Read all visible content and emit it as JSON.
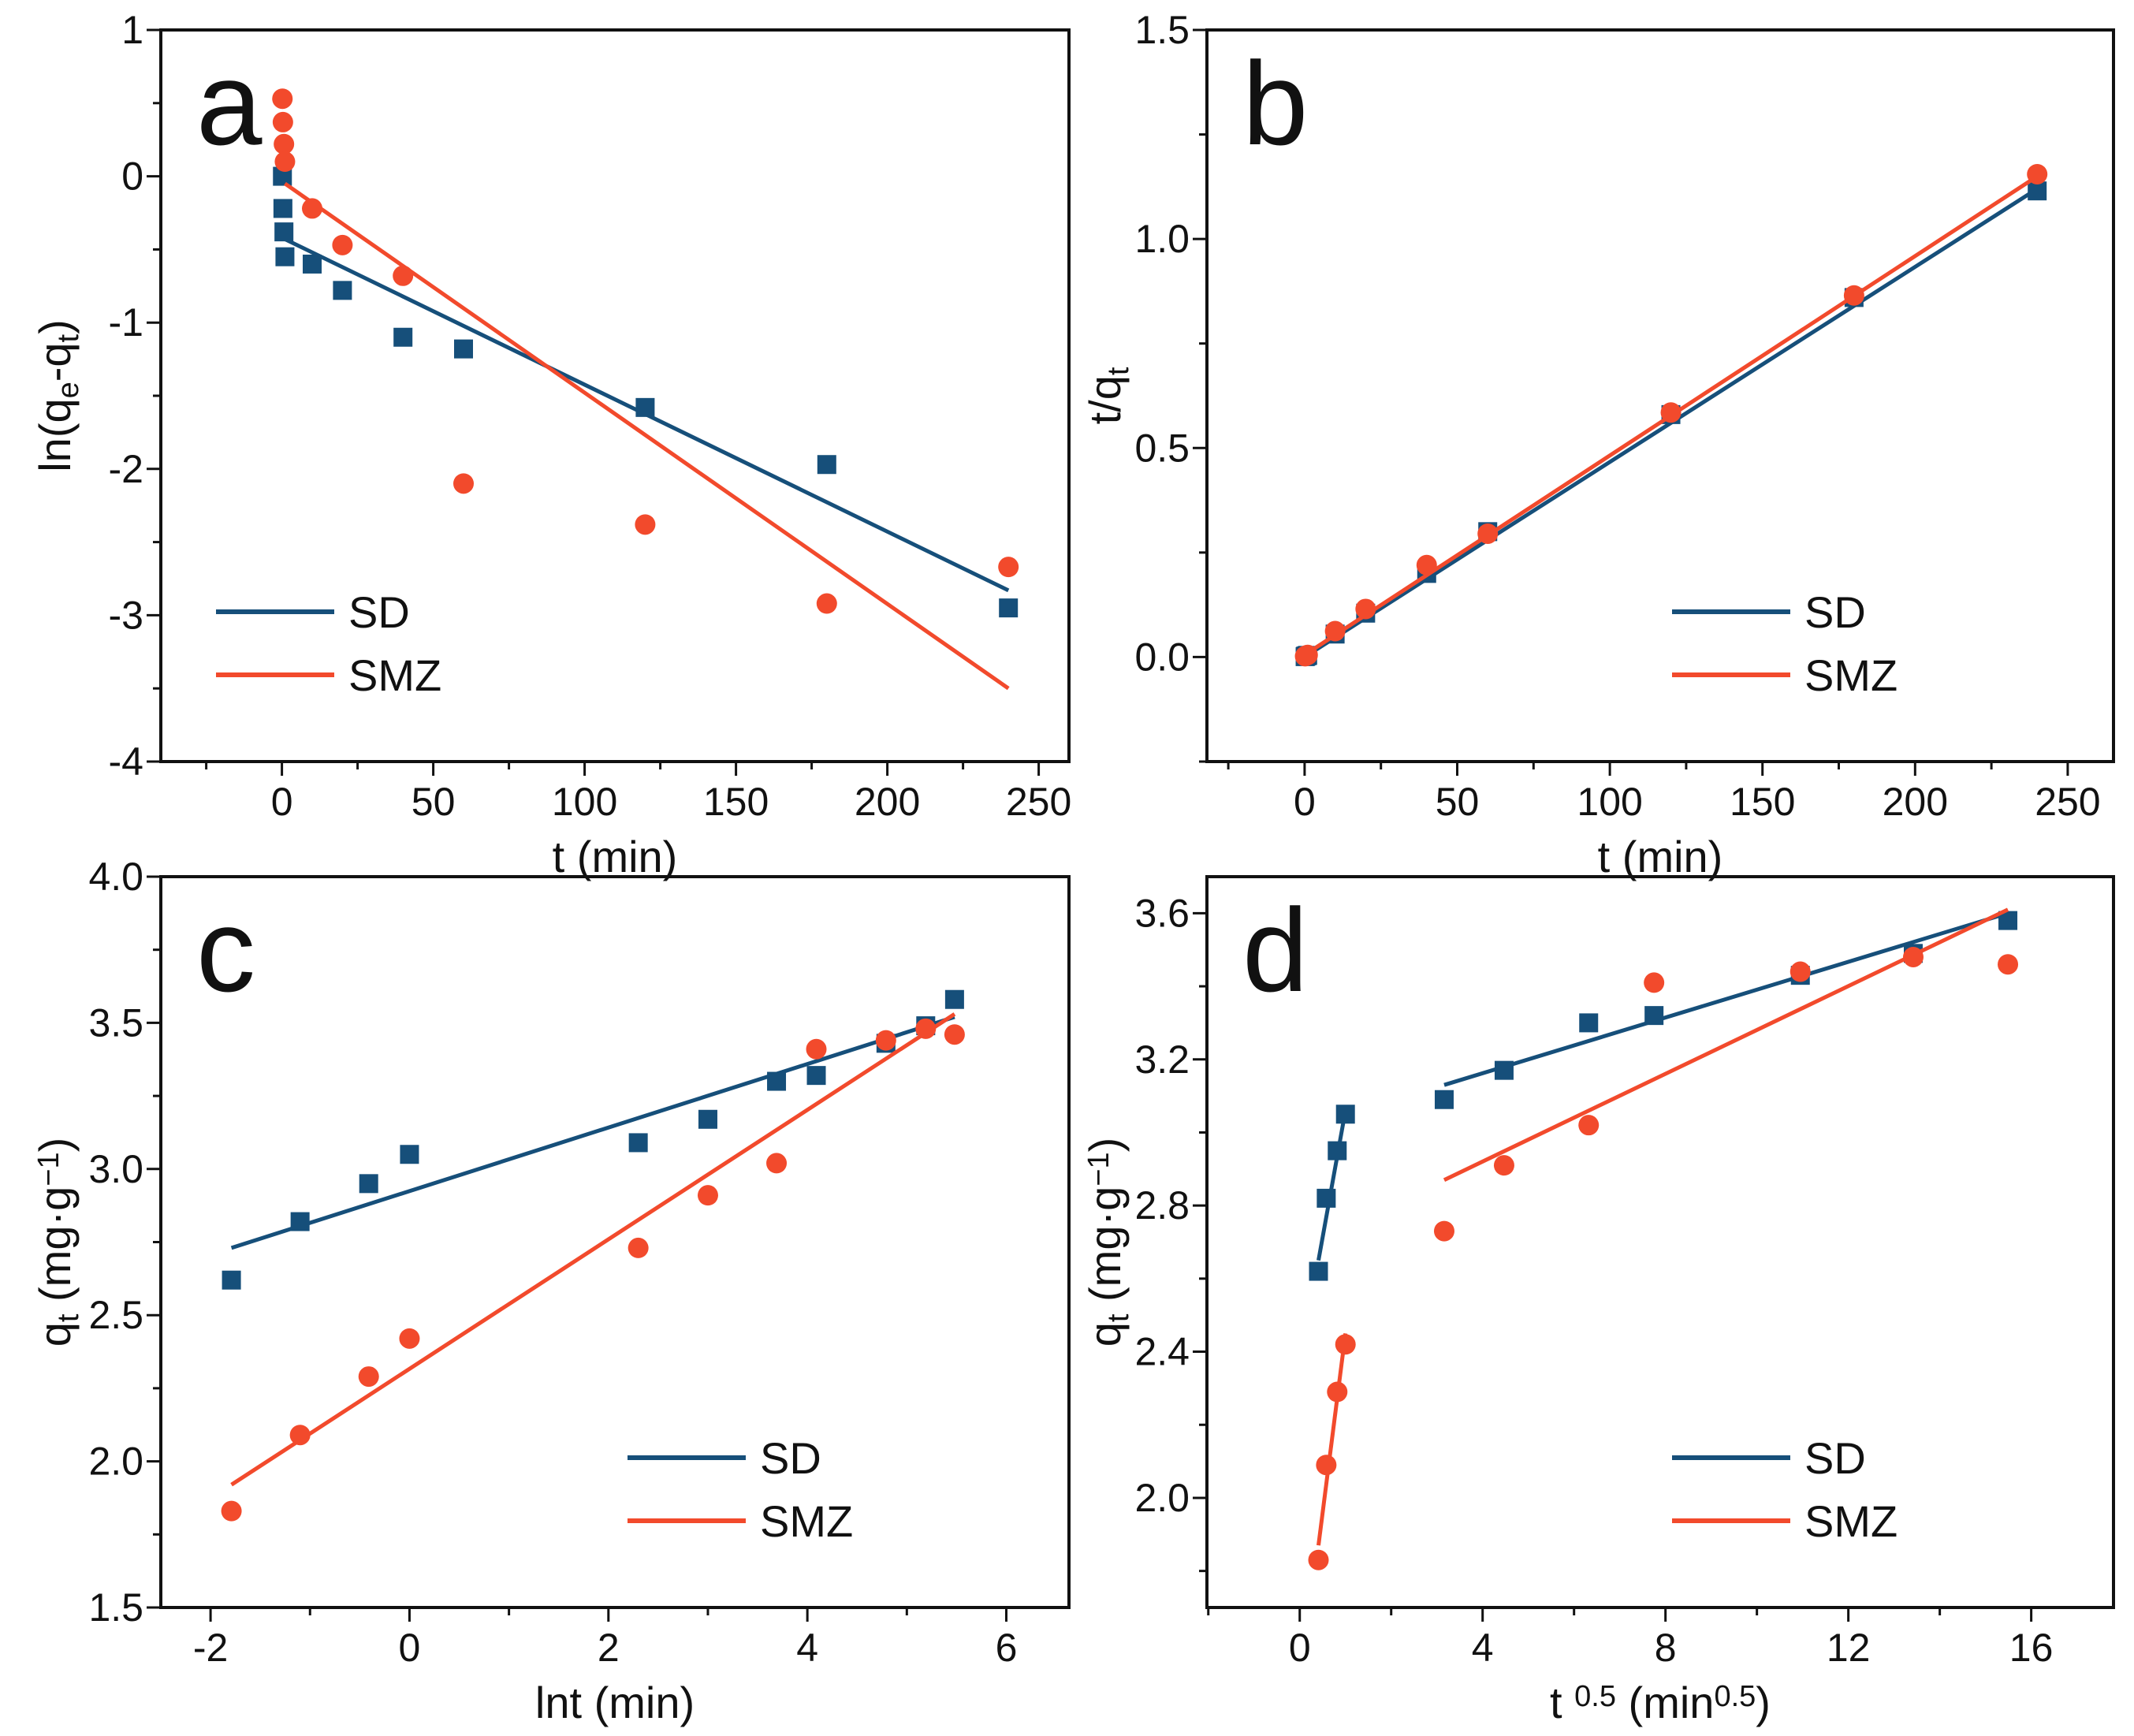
{
  "colors": {
    "SD": "#164f7a",
    "SMZ": "#f24a2c"
  },
  "chart_data": [
    {
      "type": "scatter",
      "panel": "a",
      "xlabel": [
        {
          "t": "t (min)"
        }
      ],
      "ylabel": [
        {
          "t": "ln(q"
        },
        {
          "t": "e",
          "sub": true
        },
        {
          "t": "-q"
        },
        {
          "t": "t",
          "sub": true
        },
        {
          "t": ")"
        }
      ],
      "xlim": [
        -40,
        260
      ],
      "ylim": [
        -4,
        1
      ],
      "xticks": [
        0,
        50,
        100,
        150,
        200,
        250
      ],
      "xtick_labels": [
        "0",
        "50",
        "100",
        "150",
        "200",
        "250"
      ],
      "yticks": [
        -4,
        -3,
        -2,
        -1,
        0,
        1
      ],
      "ytick_labels": [
        "-4",
        "-3",
        "-2",
        "-1",
        "0",
        "1"
      ],
      "xminor": 25,
      "yminor": 0.5,
      "legend": {
        "placement": "bottom-left",
        "entries": [
          "SD",
          "SMZ"
        ]
      },
      "series": [
        {
          "name": "SD",
          "marker": "square",
          "x": [
            0.17,
            0.33,
            0.67,
            1,
            10,
            20,
            40,
            60,
            120,
            180,
            240
          ],
          "y": [
            0.0,
            -0.22,
            -0.38,
            -0.55,
            -0.6,
            -0.78,
            -1.1,
            -1.18,
            -1.58,
            -1.97,
            -2.95
          ],
          "fit": [
            [
              1,
              -0.43
            ],
            [
              240,
              -2.83
            ]
          ]
        },
        {
          "name": "SMZ",
          "marker": "circle",
          "x": [
            0.17,
            0.33,
            0.67,
            1,
            10,
            20,
            40,
            60,
            120,
            180,
            240
          ],
          "y": [
            0.53,
            0.37,
            0.22,
            0.1,
            -0.22,
            -0.47,
            -0.68,
            -2.1,
            -2.38,
            -2.92,
            -2.67
          ],
          "fit": [
            [
              1,
              -0.05
            ],
            [
              240,
              -3.5
            ]
          ]
        }
      ]
    },
    {
      "type": "scatter",
      "panel": "b",
      "xlabel": [
        {
          "t": "t (min)"
        }
      ],
      "ylabel": [
        {
          "t": "t/q"
        },
        {
          "t": "t",
          "sub": true
        }
      ],
      "xlim": [
        -32,
        265
      ],
      "ylim": [
        -0.25,
        1.5
      ],
      "xticks": [
        0,
        50,
        100,
        150,
        200,
        250
      ],
      "xtick_labels": [
        "0",
        "50",
        "100",
        "150",
        "200",
        "250"
      ],
      "yticks": [
        0,
        0.5,
        1.0,
        1.5
      ],
      "ytick_labels": [
        "0.0",
        "0.5",
        "1.0",
        "1.5"
      ],
      "xminor": 25,
      "yminor": 0.25,
      "legend": {
        "placement": "bottom-right",
        "entries": [
          "SD",
          "SMZ"
        ]
      },
      "series": [
        {
          "name": "SD",
          "marker": "square",
          "x": [
            0.17,
            0.33,
            0.67,
            1,
            10,
            20,
            40,
            60,
            120,
            180,
            240
          ],
          "y": [
            0.001,
            0.002,
            0.003,
            0.004,
            0.055,
            0.105,
            0.2,
            0.3,
            0.58,
            0.86,
            1.115
          ],
          "fit": [
            [
              0,
              0.0
            ],
            [
              240,
              1.12
            ]
          ]
        },
        {
          "name": "SMZ",
          "marker": "circle",
          "x": [
            0.17,
            0.33,
            0.67,
            1,
            10,
            20,
            40,
            60,
            120,
            180,
            240
          ],
          "y": [
            0.002,
            0.003,
            0.004,
            0.005,
            0.062,
            0.115,
            0.22,
            0.295,
            0.585,
            0.865,
            1.155
          ],
          "fit": [
            [
              0,
              0.005
            ],
            [
              240,
              1.15
            ]
          ]
        }
      ]
    },
    {
      "type": "scatter",
      "panel": "c",
      "xlabel": [
        {
          "t": "lnt (min)"
        }
      ],
      "ylabel": [
        {
          "t": "q"
        },
        {
          "t": "t",
          "sub": true
        },
        {
          "t": " (mg·g"
        },
        {
          "t": "−1",
          "sup": true
        },
        {
          "t": ")"
        }
      ],
      "xlim": [
        -2.5,
        6.63
      ],
      "ylim": [
        1.5,
        4.0
      ],
      "xticks": [
        -2,
        0,
        2,
        4,
        6
      ],
      "xtick_labels": [
        "-2",
        "0",
        "2",
        "4",
        "6"
      ],
      "yticks": [
        1.5,
        2.0,
        2.5,
        3.0,
        3.5,
        4.0
      ],
      "ytick_labels": [
        "1.5",
        "2.0",
        "2.5",
        "3.0",
        "3.5",
        "4.0"
      ],
      "xminor": 1,
      "yminor": 0.25,
      "legend": {
        "placement": "bottom-right",
        "entries": [
          "SD",
          "SMZ"
        ]
      },
      "series": [
        {
          "name": "SD",
          "marker": "square",
          "x": [
            -1.79,
            -1.1,
            -0.41,
            0,
            2.3,
            3.0,
            3.69,
            4.09,
            4.79,
            5.19,
            5.48
          ],
          "y": [
            2.62,
            2.82,
            2.95,
            3.05,
            3.09,
            3.17,
            3.3,
            3.32,
            3.43,
            3.49,
            3.58
          ],
          "fit": [
            [
              -1.79,
              2.73
            ],
            [
              5.48,
              3.52
            ]
          ]
        },
        {
          "name": "SMZ",
          "marker": "circle",
          "x": [
            -1.79,
            -1.1,
            -0.41,
            0,
            2.3,
            3.0,
            3.69,
            4.09,
            4.79,
            5.19,
            5.48
          ],
          "y": [
            1.83,
            2.09,
            2.29,
            2.42,
            2.73,
            2.91,
            3.02,
            3.41,
            3.44,
            3.48,
            3.46
          ],
          "fit": [
            [
              -1.79,
              1.92
            ],
            [
              5.48,
              3.53
            ]
          ]
        }
      ]
    },
    {
      "type": "scatter",
      "panel": "d",
      "xlabel": [
        {
          "t": "t "
        },
        {
          "t": "0.5",
          "sup": true
        },
        {
          "t": " (min"
        },
        {
          "t": "0.5",
          "sup": true
        },
        {
          "t": ")"
        }
      ],
      "ylabel": [
        {
          "t": "q"
        },
        {
          "t": "t",
          "sub": true
        },
        {
          "t": " (mg·g"
        },
        {
          "t": "−1",
          "sup": true
        },
        {
          "t": ")"
        }
      ],
      "xlim": [
        -2.03,
        17.8
      ],
      "ylim": [
        1.7,
        3.7
      ],
      "xticks": [
        0,
        4,
        8,
        12,
        16
      ],
      "xtick_labels": [
        "0",
        "4",
        "8",
        "12",
        "16"
      ],
      "yticks": [
        2.0,
        2.4,
        2.8,
        3.2,
        3.6
      ],
      "ytick_labels": [
        "2.0",
        "2.4",
        "2.8",
        "3.2",
        "3.6"
      ],
      "xminor": 2,
      "yminor": 0.2,
      "legend": {
        "placement": "bottom-right",
        "entries": [
          "SD",
          "SMZ"
        ]
      },
      "series": [
        {
          "name": "SD",
          "marker": "square",
          "x": [
            0.41,
            0.58,
            0.82,
            1,
            3.16,
            4.47,
            6.32,
            7.75,
            10.95,
            13.42,
            15.49
          ],
          "y": [
            2.62,
            2.82,
            2.95,
            3.05,
            3.09,
            3.17,
            3.3,
            3.32,
            3.43,
            3.49,
            3.58
          ],
          "fits": [
            [
              [
                0.41,
                2.65
              ],
              [
                1.0,
                3.06
              ]
            ],
            [
              [
                3.16,
                3.13
              ],
              [
                15.49,
                3.6
              ]
            ]
          ]
        },
        {
          "name": "SMZ",
          "marker": "circle",
          "x": [
            0.41,
            0.58,
            0.82,
            1,
            3.16,
            4.47,
            6.32,
            7.75,
            10.95,
            13.42,
            15.49
          ],
          "y": [
            1.83,
            2.09,
            2.29,
            2.42,
            2.73,
            2.91,
            3.02,
            3.41,
            3.44,
            3.48,
            3.46
          ],
          "fits": [
            [
              [
                0.41,
                1.87
              ],
              [
                1.0,
                2.45
              ]
            ],
            [
              [
                3.16,
                2.87
              ],
              [
                15.49,
                3.61
              ]
            ]
          ]
        }
      ]
    }
  ]
}
